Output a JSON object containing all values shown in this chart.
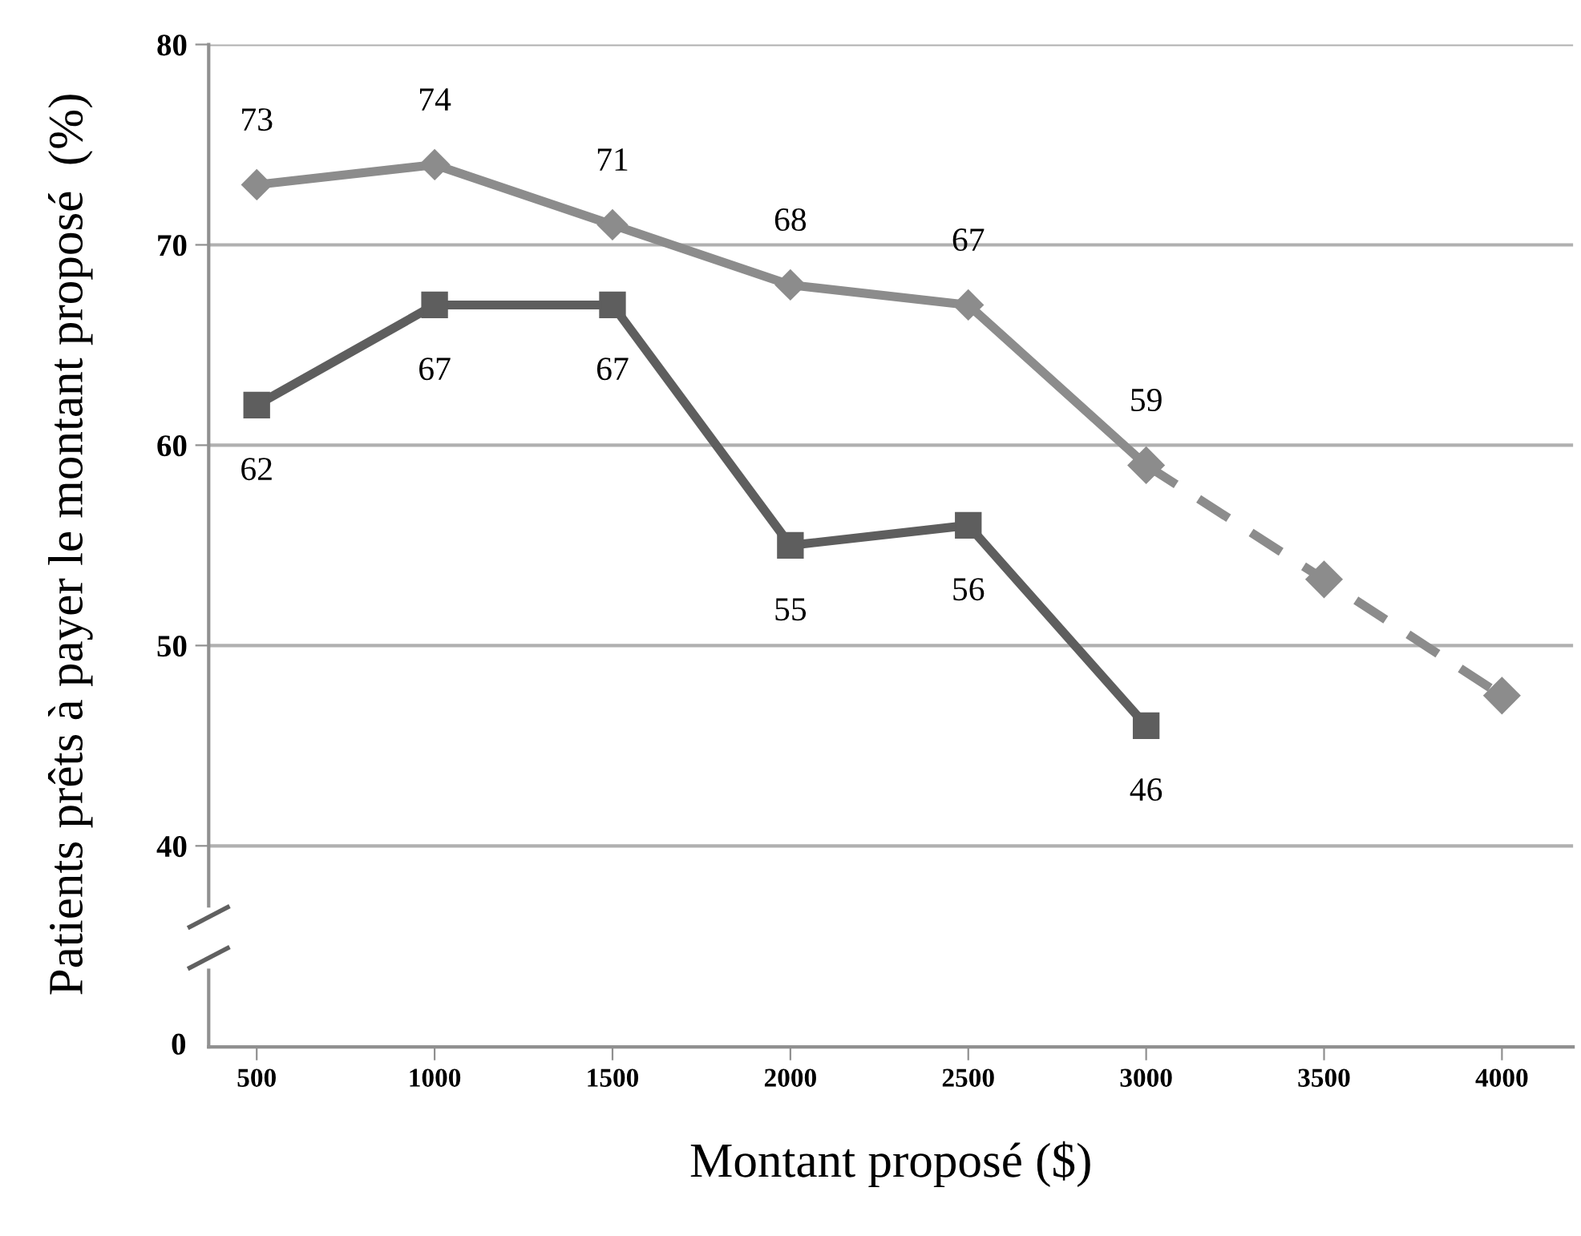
{
  "chart_data": {
    "type": "line",
    "ylabel": "Patients prêts à payer le montant proposé  (%)",
    "xlabel": "Montant proposé ($)",
    "categories": [
      "500",
      "1000",
      "1500",
      "2000",
      "2500",
      "3000",
      "3500",
      "4000"
    ],
    "ylim": [
      37,
      80
    ],
    "yticks": [
      40,
      50,
      60,
      70,
      80
    ],
    "grid": "y",
    "annotations": [
      "0"
    ],
    "series": [
      {
        "color": "#8c8c8c",
        "marker": "diamond",
        "line_style": "solid",
        "values": [
          73,
          74,
          71,
          68,
          67,
          59,
          null,
          null
        ],
        "value_labels": [
          "73",
          "74",
          "71",
          "68",
          "67",
          "59",
          null,
          null
        ]
      },
      {
        "color": "#8c8c8c",
        "marker": "diamond",
        "line_style": "dashed",
        "values": [
          null,
          null,
          null,
          null,
          null,
          59,
          53.3,
          47.5
        ],
        "value_labels": [
          null,
          null,
          null,
          null,
          null,
          null,
          null,
          null
        ]
      },
      {
        "color": "#5e5e5e",
        "marker": "square",
        "line_style": "solid",
        "values": [
          62,
          67,
          67,
          55,
          56,
          46,
          null,
          null
        ],
        "value_labels": [
          "62",
          "67",
          "67",
          "55",
          "56",
          "46",
          null,
          null
        ]
      }
    ]
  }
}
